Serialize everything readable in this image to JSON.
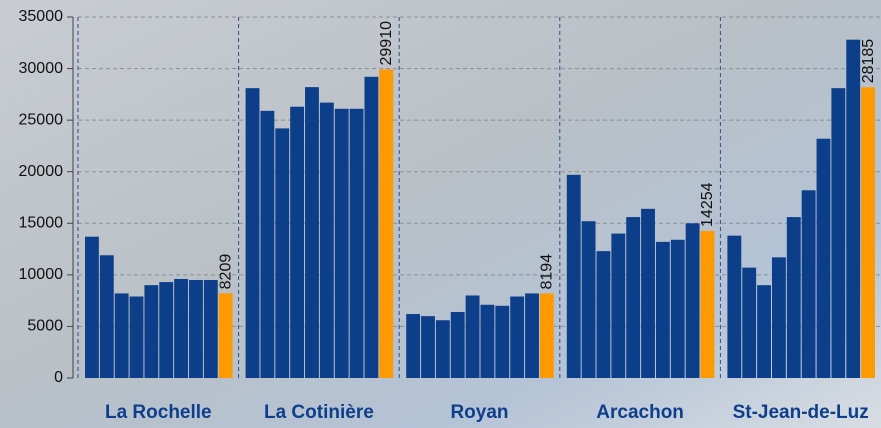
{
  "chart_data": {
    "type": "grouped_bar",
    "categories": [
      "La Rochelle",
      "La Cotinière",
      "Royan",
      "Arcachon",
      "St-Jean-de-Luz"
    ],
    "series": [
      {
        "color": "#0c3e8a",
        "values": [
          13700,
          28100,
          6200,
          19700,
          13800
        ]
      },
      {
        "color": "#0c3e8a",
        "values": [
          11900,
          25900,
          6000,
          15200,
          10700
        ]
      },
      {
        "color": "#0c3e8a",
        "values": [
          8200,
          24200,
          5600,
          12300,
          9000
        ]
      },
      {
        "color": "#0c3e8a",
        "values": [
          7900,
          26300,
          6400,
          14000,
          11700
        ]
      },
      {
        "color": "#0c3e8a",
        "values": [
          9000,
          28200,
          8000,
          15600,
          15600
        ]
      },
      {
        "color": "#0c3e8a",
        "values": [
          9300,
          26700,
          7100,
          16400,
          18200
        ]
      },
      {
        "color": "#0c3e8a",
        "values": [
          9600,
          26100,
          7000,
          13200,
          23200
        ]
      },
      {
        "color": "#0c3e8a",
        "values": [
          9500,
          26100,
          7900,
          13400,
          28100
        ]
      },
      {
        "color": "#0c3e8a",
        "values": [
          9500,
          29200,
          8200,
          15000,
          32800
        ]
      },
      {
        "color": "#ff9900",
        "values": [
          8209,
          29910,
          8194,
          14254,
          28185
        ],
        "data_labels": true
      }
    ],
    "ylim": [
      0,
      35000
    ],
    "yticks": [
      0,
      5000,
      10000,
      15000,
      20000,
      25000,
      30000,
      35000
    ],
    "grid": true
  }
}
